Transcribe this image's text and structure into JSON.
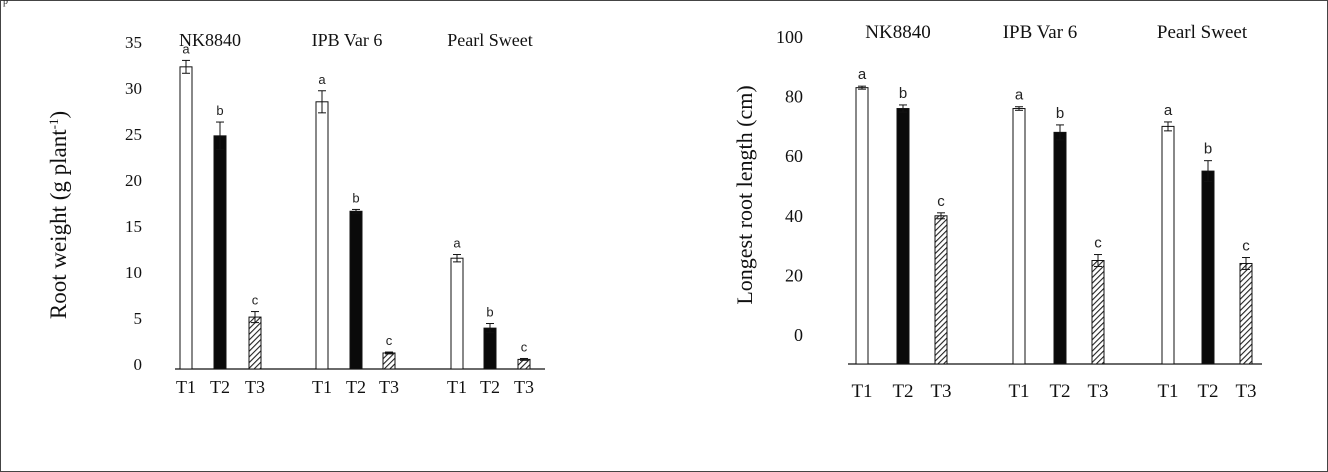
{
  "figure": {
    "corner_mark": "p"
  },
  "chart_data": [
    {
      "type": "bar",
      "title": "",
      "ylabel": "Root weight (g plant-1)",
      "ylabel_main": "Root weight (g plant",
      "ylabel_sup": "-1",
      "ylabel_tail": ")",
      "xlabel": "",
      "ylim": [
        0,
        35
      ],
      "yticks": [
        "0",
        "5",
        "10",
        "15",
        "20",
        "25",
        "30",
        "35"
      ],
      "groups": [
        "NK8840",
        "IPB Var 6",
        "Pearl Sweet"
      ],
      "categories": [
        "T1",
        "T2",
        "T3"
      ],
      "series": [
        {
          "name": "T1",
          "fill": "white",
          "values": [
            32.3,
            28.5,
            11.5
          ],
          "errors": [
            0.7,
            1.2,
            0.4
          ]
        },
        {
          "name": "T2",
          "fill": "black",
          "values": [
            24.8,
            16.6,
            3.9
          ],
          "errors": [
            1.5,
            0.2,
            0.5
          ]
        },
        {
          "name": "T3",
          "fill": "hatched",
          "values": [
            5.1,
            1.2,
            0.5
          ],
          "errors": [
            0.6,
            0.1,
            0.1
          ]
        }
      ],
      "letters": [
        [
          "a",
          "b",
          "c"
        ],
        [
          "a",
          "b",
          "c"
        ],
        [
          "a",
          "b",
          "c"
        ]
      ],
      "grid": false,
      "legend": "none"
    },
    {
      "type": "bar",
      "title": "",
      "ylabel": "Longest root length (cm)",
      "xlabel": "",
      "ylim": [
        0,
        100
      ],
      "yticks": [
        "0",
        "20",
        "40",
        "60",
        "80",
        "100"
      ],
      "groups": [
        "NK8840",
        "IPB Var 6",
        "Pearl Sweet"
      ],
      "categories": [
        "T1",
        "T2",
        "T3"
      ],
      "series": [
        {
          "name": "T1",
          "fill": "white",
          "values": [
            83,
            76,
            70
          ],
          "errors": [
            0.5,
            0.6,
            1.5
          ]
        },
        {
          "name": "T2",
          "fill": "black",
          "values": [
            76,
            68,
            55
          ],
          "errors": [
            1.2,
            2.5,
            3.5
          ]
        },
        {
          "name": "T3",
          "fill": "hatched",
          "values": [
            40,
            25,
            24
          ],
          "errors": [
            1.0,
            2.0,
            2.0
          ]
        }
      ],
      "letters": [
        [
          "a",
          "b",
          "c"
        ],
        [
          "a",
          "b",
          "c"
        ],
        [
          "a",
          "b",
          "c"
        ]
      ],
      "grid": false,
      "legend": "none"
    }
  ],
  "colors": {
    "bar_outline": "#111111",
    "dark_fill": "#0a0a0a",
    "hatch": "#222222",
    "text": "#111111"
  }
}
